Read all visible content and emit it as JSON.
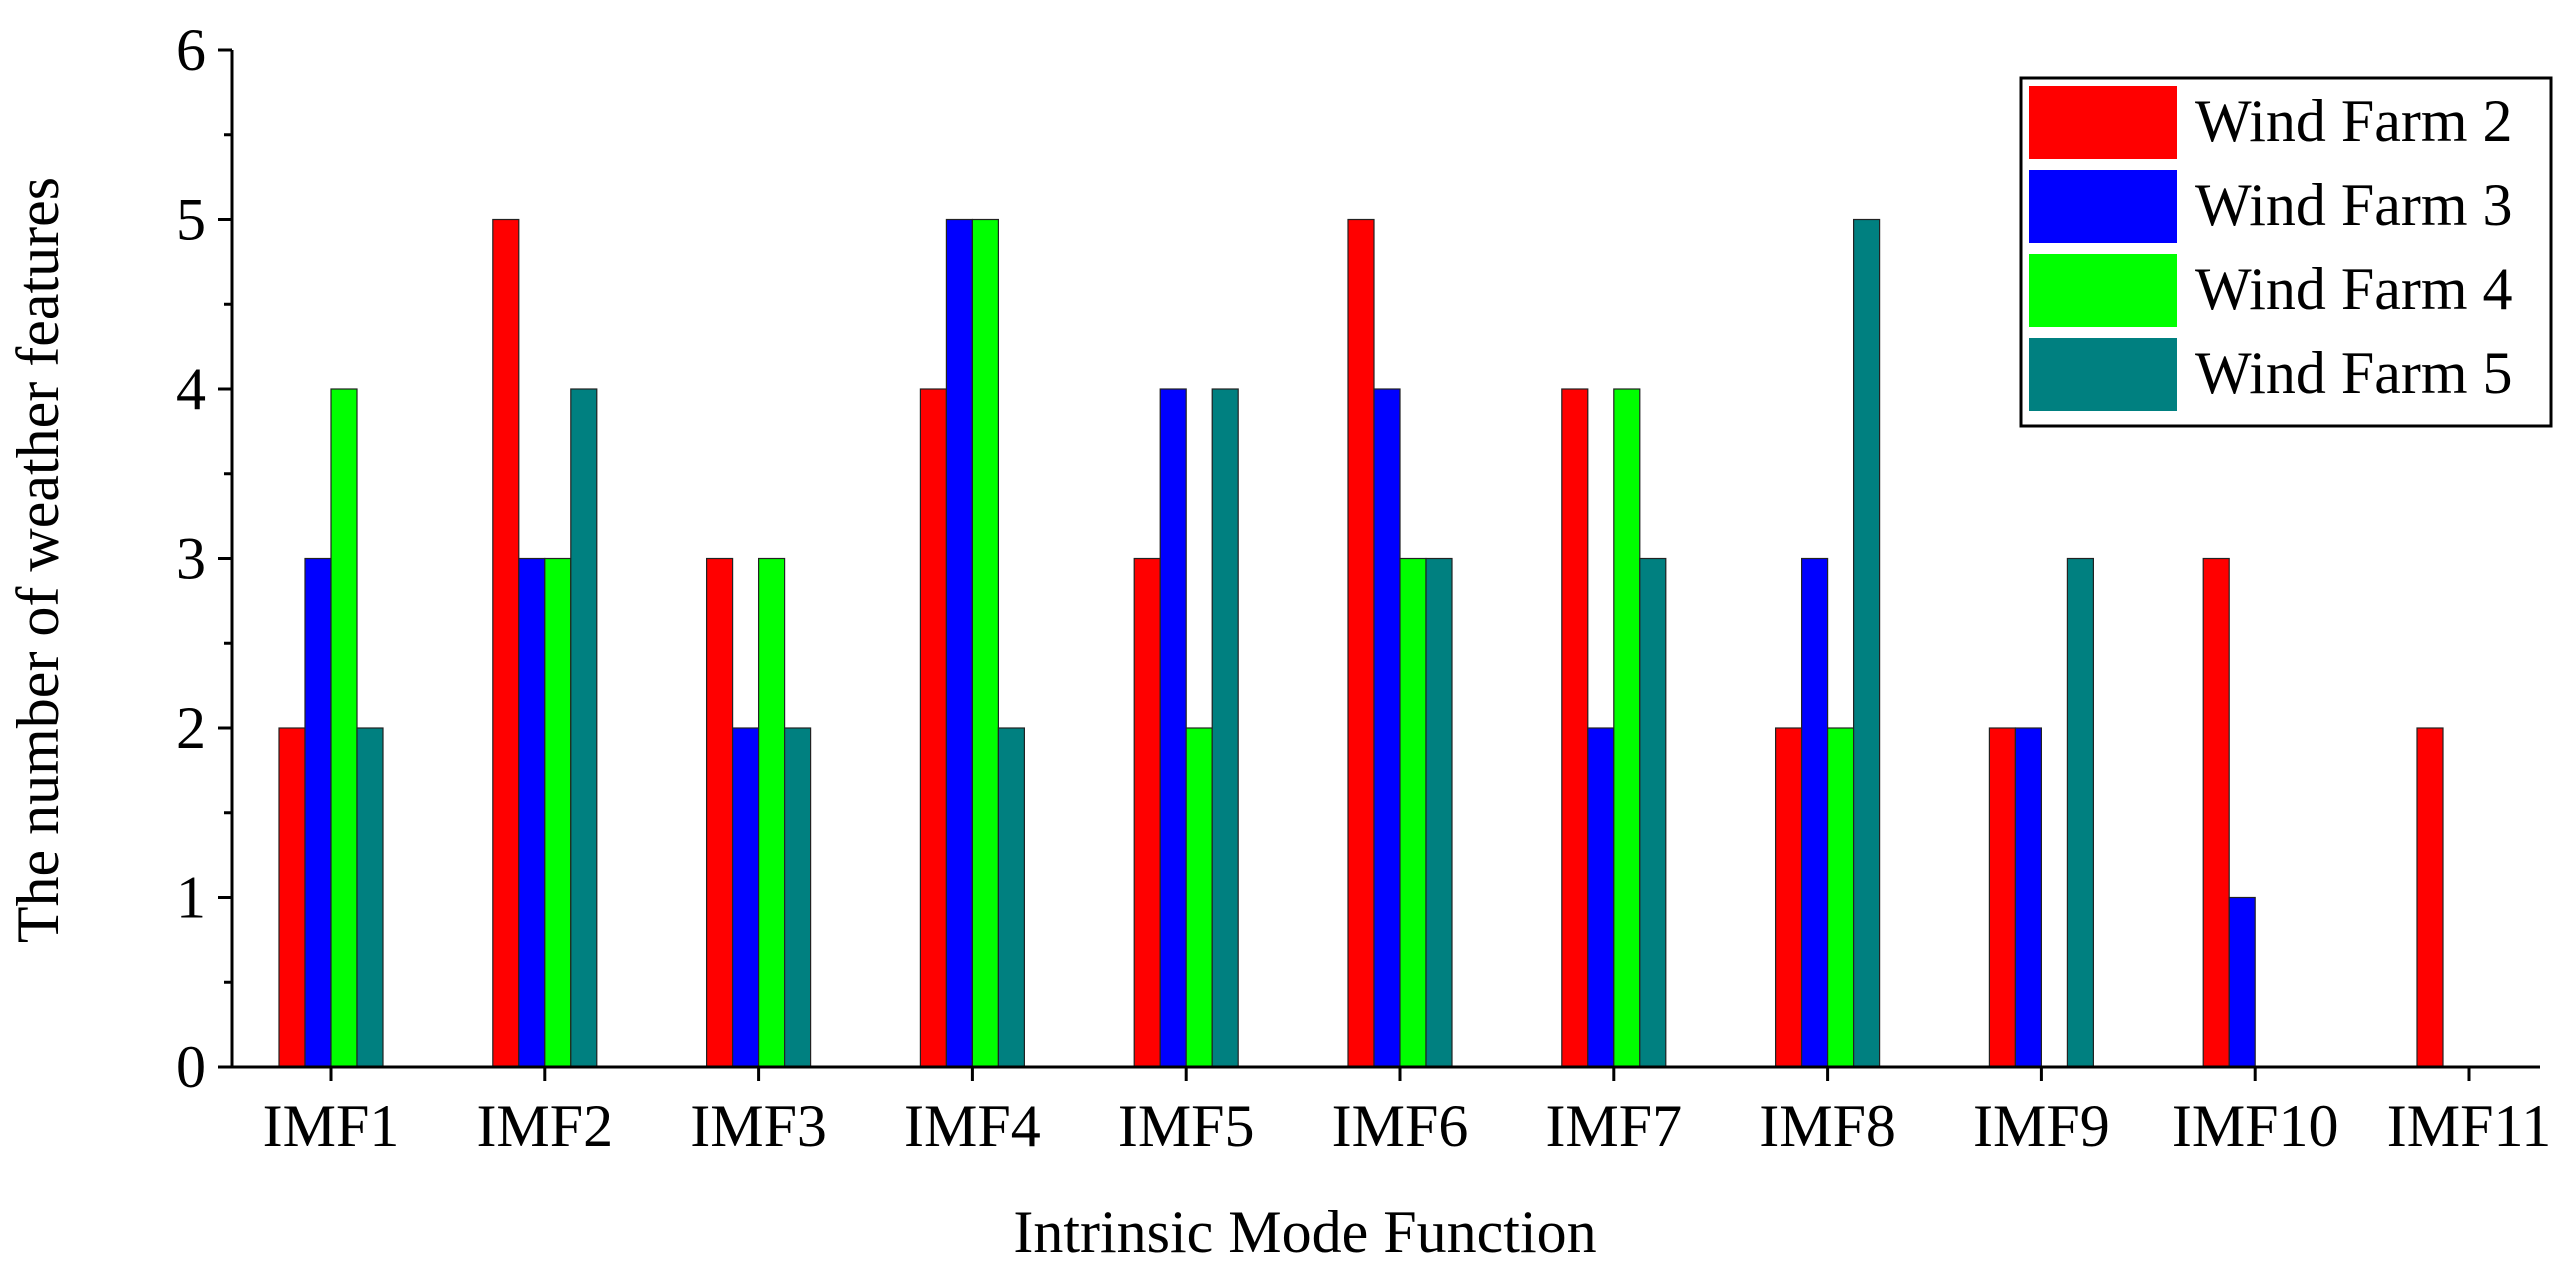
{
  "chart_data": {
    "type": "bar",
    "xlabel": "Intrinsic Mode Function",
    "ylabel": "The number of weather features",
    "ylim": [
      0,
      6
    ],
    "yticks": [
      0,
      1,
      2,
      3,
      4,
      5,
      6
    ],
    "categories": [
      "IMF1",
      "IMF2",
      "IMF3",
      "IMF4",
      "IMF5",
      "IMF6",
      "IMF7",
      "IMF8",
      "IMF9",
      "IMF10",
      "IMF11"
    ],
    "series": [
      {
        "name": "Wind Farm 2",
        "color": "#ff0000",
        "values": [
          2,
          5,
          3,
          4,
          3,
          5,
          4,
          2,
          2,
          3,
          2
        ]
      },
      {
        "name": "Wind Farm 3",
        "color": "#0000ff",
        "values": [
          3,
          3,
          2,
          5,
          4,
          4,
          2,
          3,
          2,
          1,
          0
        ]
      },
      {
        "name": "Wind Farm 4",
        "color": "#00ff00",
        "values": [
          4,
          3,
          3,
          5,
          2,
          3,
          4,
          2,
          0,
          0,
          0
        ]
      },
      {
        "name": "Wind Farm 5",
        "color": "#008080",
        "values": [
          2,
          4,
          2,
          2,
          4,
          3,
          3,
          5,
          3,
          0,
          0
        ]
      }
    ],
    "grid": false,
    "legend_position": "top-right"
  }
}
